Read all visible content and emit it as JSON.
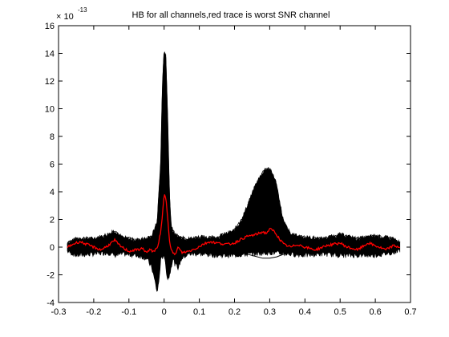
{
  "chart_data": {
    "type": "line",
    "title": "HB for all channels,red trace is worst SNR channel",
    "xlabel": "",
    "ylabel": "",
    "y_multiplier": "× 10",
    "y_exponent": "-13",
    "xlim": [
      -0.3,
      0.7
    ],
    "ylim": [
      -4,
      16
    ],
    "x_ticks": [
      "-0.3",
      "-0.2",
      "-0.1",
      "0",
      "0.1",
      "0.2",
      "0.3",
      "0.4",
      "0.5",
      "0.6",
      "0.7"
    ],
    "y_ticks": [
      "-4",
      "-2",
      "0",
      "2",
      "4",
      "6",
      "8",
      "10",
      "12",
      "14",
      "16"
    ],
    "grid": false,
    "colors": {
      "envelope": "#000000",
      "worst_snr_trace": "#ff0000"
    },
    "series": [
      {
        "role": "envelope_upper",
        "x": [
          -0.275,
          -0.25,
          -0.2,
          -0.16,
          -0.14,
          -0.12,
          -0.08,
          -0.05,
          -0.035,
          -0.02,
          -0.01,
          -0.005,
          0.0,
          0.005,
          0.01,
          0.015,
          0.02,
          0.03,
          0.04,
          0.05,
          0.07,
          0.1,
          0.15,
          0.2,
          0.22,
          0.24,
          0.26,
          0.28,
          0.29,
          0.3,
          0.31,
          0.32,
          0.33,
          0.34,
          0.36,
          0.4,
          0.45,
          0.5,
          0.55,
          0.6,
          0.65,
          0.67
        ],
        "y": [
          0.3,
          0.6,
          0.6,
          0.9,
          1.2,
          0.7,
          0.5,
          0.6,
          0.8,
          1.8,
          6.0,
          11.5,
          14.3,
          13.8,
          9.5,
          4.0,
          1.5,
          0.9,
          0.8,
          0.7,
          0.6,
          0.7,
          0.7,
          1.2,
          2.0,
          3.2,
          4.5,
          5.4,
          5.7,
          5.6,
          5.2,
          4.5,
          3.0,
          1.8,
          0.9,
          0.7,
          0.6,
          0.9,
          0.6,
          0.8,
          0.6,
          0.3
        ]
      },
      {
        "role": "envelope_lower",
        "x": [
          -0.275,
          -0.25,
          -0.2,
          -0.16,
          -0.14,
          -0.12,
          -0.08,
          -0.05,
          -0.035,
          -0.025,
          -0.02,
          -0.015,
          -0.01,
          0.0,
          0.005,
          0.01,
          0.015,
          0.02,
          0.025,
          0.03,
          0.04,
          0.05,
          0.07,
          0.1,
          0.15,
          0.2,
          0.25,
          0.3,
          0.35,
          0.4,
          0.45,
          0.5,
          0.55,
          0.6,
          0.65,
          0.67
        ],
        "y": [
          -0.3,
          -0.6,
          -0.5,
          -0.4,
          -0.6,
          -0.5,
          -0.6,
          -0.8,
          -1.5,
          -2.6,
          -3.3,
          -2.5,
          -1.0,
          -0.5,
          -1.5,
          -2.3,
          -2.1,
          -1.4,
          -0.8,
          -1.2,
          -1.5,
          -0.8,
          -0.5,
          -0.5,
          -0.6,
          -0.6,
          -0.5,
          -0.4,
          -0.5,
          -0.6,
          -0.5,
          -0.6,
          -0.6,
          -0.6,
          -0.4,
          -0.2
        ]
      },
      {
        "role": "outlier_channel",
        "x": [
          -0.03,
          -0.02,
          -0.01,
          0.0,
          0.005,
          0.01,
          0.015,
          0.02,
          0.03,
          0.04,
          0.06,
          0.1,
          0.15,
          0.2,
          0.22,
          0.25,
          0.28,
          0.3,
          0.32,
          0.35,
          0.38,
          0.4
        ],
        "y": [
          0.2,
          0.3,
          0.1,
          -0.5,
          -1.2,
          -2.2,
          -1.8,
          -1.0,
          -0.6,
          -0.3,
          -0.2,
          -0.1,
          0.0,
          -0.1,
          -0.4,
          -0.6,
          -0.8,
          -0.8,
          -0.7,
          -0.4,
          -0.1,
          0.0
        ]
      },
      {
        "role": "worst_snr",
        "x": [
          -0.275,
          -0.26,
          -0.24,
          -0.22,
          -0.2,
          -0.18,
          -0.16,
          -0.15,
          -0.14,
          -0.13,
          -0.12,
          -0.1,
          -0.08,
          -0.06,
          -0.05,
          -0.04,
          -0.03,
          -0.02,
          -0.01,
          -0.005,
          0.0,
          0.005,
          0.01,
          0.015,
          0.02,
          0.03,
          0.04,
          0.05,
          0.07,
          0.09,
          0.11,
          0.13,
          0.15,
          0.18,
          0.2,
          0.22,
          0.24,
          0.26,
          0.27,
          0.28,
          0.29,
          0.3,
          0.31,
          0.32,
          0.33,
          0.34,
          0.36,
          0.38,
          0.4,
          0.43,
          0.46,
          0.5,
          0.52,
          0.55,
          0.58,
          0.6,
          0.63,
          0.65,
          0.67
        ],
        "y": [
          0.0,
          0.2,
          0.4,
          0.2,
          0.0,
          -0.2,
          0.1,
          0.3,
          0.5,
          0.2,
          0.0,
          -0.3,
          -0.2,
          -0.1,
          -0.4,
          -0.2,
          -0.3,
          -0.1,
          1.0,
          2.2,
          3.8,
          3.6,
          2.2,
          0.6,
          -0.2,
          -0.6,
          0.0,
          -0.4,
          -0.3,
          -0.1,
          0.2,
          0.4,
          0.3,
          0.2,
          0.3,
          0.6,
          0.8,
          0.9,
          1.0,
          1.1,
          1.0,
          1.3,
          1.2,
          0.9,
          0.5,
          0.2,
          0.0,
          0.2,
          0.0,
          -0.2,
          0.1,
          0.3,
          0.0,
          -0.2,
          0.3,
          0.1,
          -0.2,
          0.1,
          0.0
        ]
      }
    ]
  }
}
